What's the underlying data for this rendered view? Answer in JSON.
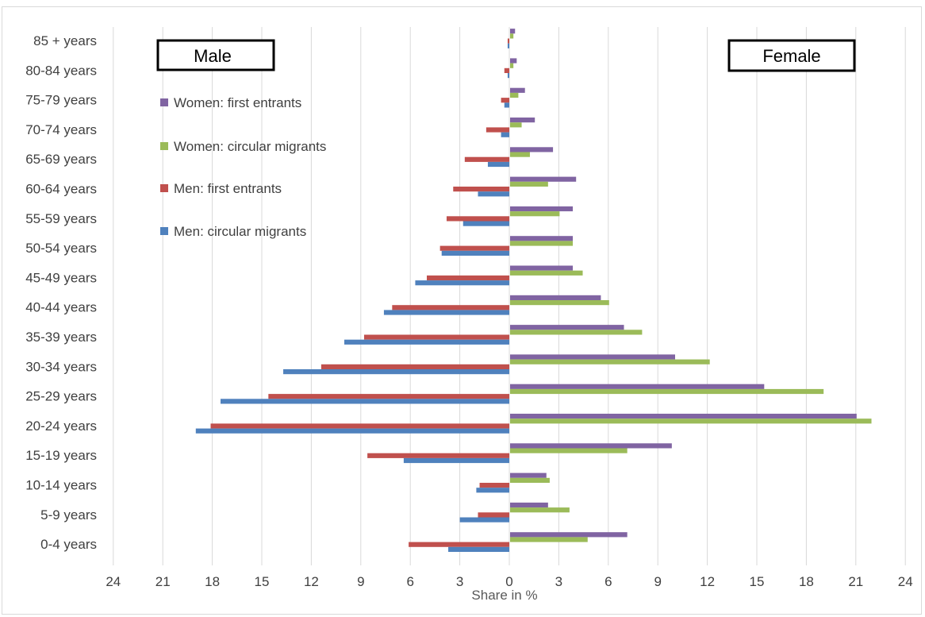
{
  "chart_data": {
    "type": "bar",
    "orientation": "horizontal",
    "title": "",
    "xlabel": "Share in %",
    "xlim": [
      -24,
      24
    ],
    "x_ticks": [
      "24",
      "21",
      "18",
      "15",
      "12",
      "9",
      "6",
      "3",
      "0",
      "3",
      "6",
      "9",
      "12",
      "15",
      "18",
      "21",
      "24"
    ],
    "grid": true,
    "legend_position": "top-left",
    "left_box_label": "Male",
    "right_box_label": "Female",
    "categories": [
      "85 + years",
      "80-84 years",
      "75-79 years",
      "70-74 years",
      "65-69 years",
      "60-64 years",
      "55-59 years",
      "50-54 years",
      "45-49 years",
      "40-44 years",
      "35-39 years",
      "30-34 years",
      "25-29 years",
      "20-24 years",
      "15-19 years",
      "10-14 years",
      "5-9 years",
      "0-4 years"
    ],
    "series": [
      {
        "name": "Women: first entrants",
        "side": "female",
        "color": "#8064a2",
        "values": [
          0.3,
          0.4,
          0.9,
          1.5,
          2.6,
          4.0,
          3.8,
          3.8,
          3.8,
          5.5,
          6.9,
          10.0,
          15.4,
          21.0,
          9.8,
          2.2,
          2.3,
          7.1
        ]
      },
      {
        "name": "Women: circular migrants",
        "side": "female",
        "color": "#9bbb59",
        "values": [
          0.2,
          0.2,
          0.5,
          0.7,
          1.2,
          2.3,
          3.0,
          3.8,
          4.4,
          6.0,
          8.0,
          12.1,
          19.0,
          21.9,
          7.1,
          2.4,
          3.6,
          4.7
        ]
      },
      {
        "name": "Men: first entrants",
        "side": "male",
        "color": "#c0504d",
        "values": [
          0.1,
          0.3,
          0.5,
          1.4,
          2.7,
          3.4,
          3.8,
          4.2,
          5.0,
          7.1,
          8.8,
          11.4,
          14.6,
          18.1,
          8.6,
          1.8,
          1.9,
          6.1
        ]
      },
      {
        "name": "Men: circular migrants",
        "side": "male",
        "color": "#4f81bd",
        "values": [
          0.1,
          0.1,
          0.3,
          0.5,
          1.3,
          1.9,
          2.8,
          4.1,
          5.7,
          7.6,
          10.0,
          13.7,
          17.5,
          19.0,
          6.4,
          2.0,
          3.0,
          3.7
        ]
      }
    ]
  }
}
